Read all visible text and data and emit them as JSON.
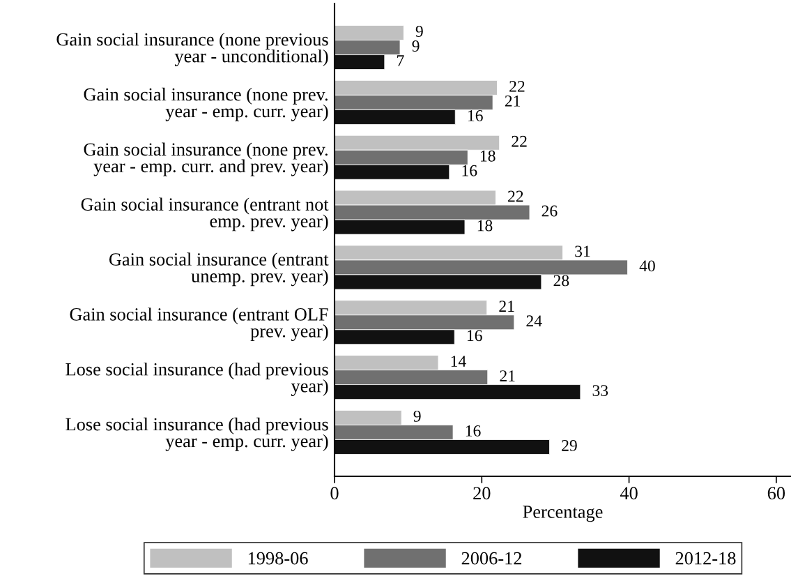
{
  "chart_data": {
    "type": "bar",
    "orientation": "horizontal",
    "xlabel": "Percentage",
    "categories": [
      "Gain social insurance (none previous\nyear - unconditional)",
      "Gain social insurance (none prev.\nyear - emp. curr. year)",
      "Gain social insurance (none prev.\nyear - emp. curr. and prev. year)",
      "Gain social insurance (entrant not\nemp. prev. year)",
      "Gain social insurance (entrant\nunemp. prev. year)",
      "Gain social insurance (entrant OLF\nprev. year)",
      "Lose social insurance (had previous\nyear)",
      "Lose social insurance (had previous\nyear - emp. curr. year)"
    ],
    "series": [
      {
        "name": "1998-06",
        "color": "#c0c0c0",
        "values": [
          9.4,
          22.1,
          22.4,
          21.9,
          31.0,
          20.7,
          14.1,
          9.1
        ],
        "value_labels": [
          "9",
          "22",
          "22",
          "22",
          "31",
          "21",
          "14",
          "9"
        ]
      },
      {
        "name": "2006-12",
        "color": "#707070",
        "values": [
          8.9,
          21.5,
          18.1,
          26.5,
          39.8,
          24.4,
          20.8,
          16.1
        ],
        "value_labels": [
          "9",
          "21",
          "18",
          "26",
          "40",
          "24",
          "21",
          "16"
        ]
      },
      {
        "name": "2012-18",
        "color": "#111111",
        "values": [
          6.8,
          16.4,
          15.6,
          17.7,
          28.1,
          16.3,
          33.4,
          29.2
        ],
        "value_labels": [
          "7",
          "16",
          "16",
          "18",
          "28",
          "16",
          "33",
          "29"
        ]
      }
    ],
    "xlim": [
      0,
      62
    ],
    "xticks": [
      0,
      20,
      40,
      60
    ],
    "grid": false,
    "legend": "bottom"
  }
}
